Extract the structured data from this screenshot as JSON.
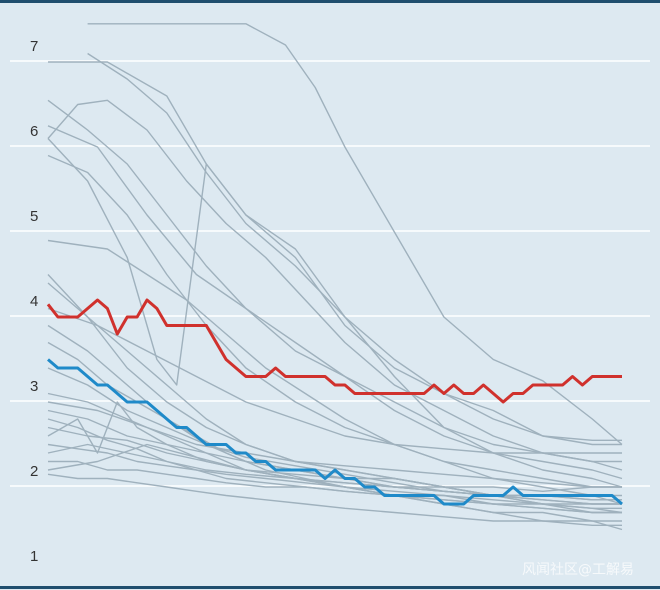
{
  "chart_data": {
    "type": "line",
    "title": "",
    "xlabel": "",
    "ylabel": "",
    "ylim": [
      0.85,
      7.5
    ],
    "xlim": [
      0,
      58
    ],
    "y_ticks": [
      1,
      2,
      3,
      4,
      5,
      6,
      7
    ],
    "y_tick_labels": [
      "1",
      "2",
      "3",
      "4",
      "5",
      "6",
      "7"
    ],
    "grid": true,
    "colors": {
      "background": "#dde9f1",
      "grid": "#ffffff",
      "highlight_red": "#d0312d",
      "highlight_blue": "#1f8ac9",
      "context": "#9fb1bd",
      "rule": "#1f4e6e"
    },
    "highlight_series": [
      {
        "name": "red series",
        "color": "#d0312d",
        "x": [
          0,
          1,
          2,
          3,
          4,
          5,
          6,
          7,
          8,
          9,
          10,
          11,
          12,
          13,
          14,
          15,
          16,
          17,
          18,
          19,
          20,
          21,
          22,
          23,
          24,
          25,
          26,
          27,
          28,
          29,
          30,
          31,
          32,
          33,
          34,
          35,
          36,
          37,
          38,
          39,
          40,
          41,
          42,
          43,
          44,
          45,
          46,
          47,
          48,
          49,
          50,
          51,
          52,
          53,
          54,
          55,
          56,
          57,
          58
        ],
        "values": [
          3.95,
          3.8,
          3.8,
          3.8,
          3.9,
          4.0,
          3.9,
          3.6,
          3.8,
          3.8,
          4.0,
          3.9,
          3.7,
          3.7,
          3.7,
          3.7,
          3.7,
          3.5,
          3.3,
          3.2,
          3.1,
          3.1,
          3.1,
          3.2,
          3.1,
          3.1,
          3.1,
          3.1,
          3.1,
          3.0,
          3.0,
          2.9,
          2.9,
          2.9,
          2.9,
          2.9,
          2.9,
          2.9,
          2.9,
          3.0,
          2.9,
          3.0,
          2.9,
          2.9,
          3.0,
          2.9,
          2.8,
          2.9,
          2.9,
          3.0,
          3.0,
          3.0,
          3.0,
          3.1,
          3.0,
          3.1,
          3.1,
          3.1,
          3.1
        ]
      },
      {
        "name": "blue series",
        "color": "#1f8ac9",
        "x": [
          0,
          1,
          2,
          3,
          4,
          5,
          6,
          7,
          8,
          9,
          10,
          11,
          12,
          13,
          14,
          15,
          16,
          17,
          18,
          19,
          20,
          21,
          22,
          23,
          24,
          25,
          26,
          27,
          28,
          29,
          30,
          31,
          32,
          33,
          34,
          35,
          36,
          37,
          38,
          39,
          40,
          41,
          42,
          43,
          44,
          45,
          46,
          47,
          48,
          49,
          50,
          51,
          52,
          53,
          54,
          55,
          56,
          57,
          58
        ],
        "values": [
          3.3,
          3.2,
          3.2,
          3.2,
          3.1,
          3.0,
          3.0,
          2.9,
          2.8,
          2.8,
          2.8,
          2.7,
          2.6,
          2.5,
          2.5,
          2.4,
          2.3,
          2.3,
          2.3,
          2.2,
          2.2,
          2.1,
          2.1,
          2.0,
          2.0,
          2.0,
          2.0,
          2.0,
          1.9,
          2.0,
          1.9,
          1.9,
          1.8,
          1.8,
          1.7,
          1.7,
          1.7,
          1.7,
          1.7,
          1.7,
          1.6,
          1.6,
          1.6,
          1.7,
          1.7,
          1.7,
          1.7,
          1.8,
          1.7,
          1.7,
          1.7,
          1.7,
          1.7,
          1.7,
          1.7,
          1.7,
          1.7,
          1.7,
          1.6
        ]
      }
    ],
    "context_series": [
      {
        "x": [
          4,
          20,
          24,
          27,
          30,
          35,
          40,
          45,
          50,
          55,
          58
        ],
        "values": [
          7.25,
          7.25,
          7.0,
          6.5,
          5.8,
          4.8,
          3.8,
          3.3,
          3.05,
          2.6,
          2.3
        ]
      },
      {
        "x": [
          0,
          6,
          12,
          16,
          20,
          25,
          30,
          35,
          40,
          45,
          50,
          55,
          58
        ],
        "values": [
          6.8,
          6.8,
          6.4,
          5.6,
          5.0,
          4.5,
          3.7,
          3.2,
          2.9,
          2.6,
          2.4,
          2.35,
          2.35
        ]
      },
      {
        "x": [
          4,
          8,
          12,
          16,
          20,
          25,
          30,
          35,
          40,
          45,
          50,
          55,
          58
        ],
        "values": [
          6.9,
          6.6,
          6.2,
          5.5,
          4.9,
          4.4,
          3.8,
          3.3,
          2.9,
          2.7,
          2.4,
          2.3,
          2.3
        ]
      },
      {
        "x": [
          0,
          3,
          6,
          10,
          14,
          18,
          22,
          26,
          30,
          35,
          40,
          45,
          50,
          55,
          58
        ],
        "values": [
          5.9,
          6.3,
          6.35,
          6.0,
          5.4,
          4.9,
          4.5,
          4.0,
          3.5,
          3.0,
          2.7,
          2.4,
          2.2,
          2.1,
          2.0
        ]
      },
      {
        "x": [
          0,
          5,
          10,
          15,
          20,
          25,
          30,
          35,
          40,
          45,
          50,
          55,
          58
        ],
        "values": [
          6.05,
          5.8,
          5.0,
          4.3,
          3.9,
          3.4,
          3.1,
          2.7,
          2.4,
          2.2,
          2.1,
          2.0,
          1.9
        ]
      },
      {
        "x": [
          0,
          4,
          8,
          12,
          16,
          20,
          25,
          30,
          35,
          40,
          45,
          50,
          55,
          58
        ],
        "values": [
          5.7,
          5.5,
          5.0,
          4.3,
          3.7,
          3.2,
          2.8,
          2.5,
          2.3,
          2.1,
          2.0,
          1.9,
          1.8,
          1.8
        ]
      },
      {
        "x": [
          0,
          6,
          10,
          14,
          18,
          22,
          26,
          30,
          35,
          40,
          45,
          50,
          55,
          58
        ],
        "values": [
          4.7,
          4.6,
          4.3,
          4.0,
          3.6,
          3.2,
          2.9,
          2.6,
          2.3,
          2.1,
          1.9,
          1.8,
          1.7,
          1.6
        ]
      },
      {
        "x": [
          0,
          4,
          8,
          11,
          13,
          16,
          20,
          25,
          30,
          35,
          40,
          45,
          50,
          55,
          58
        ],
        "values": [
          5.9,
          5.4,
          4.5,
          3.3,
          3.0,
          5.6,
          5.0,
          4.6,
          3.8,
          3.1,
          2.5,
          2.2,
          2.0,
          1.9,
          1.8
        ]
      },
      {
        "x": [
          0,
          4,
          8,
          12,
          16,
          20,
          25,
          30,
          35,
          40,
          45,
          50,
          55,
          58
        ],
        "values": [
          4.3,
          3.8,
          3.4,
          3.0,
          2.6,
          2.3,
          2.1,
          2.0,
          1.9,
          1.8,
          1.7,
          1.6,
          1.5,
          1.5
        ]
      },
      {
        "x": [
          0,
          3,
          6,
          9,
          12,
          15,
          18,
          22,
          26,
          30,
          35,
          40,
          45,
          50,
          55,
          58
        ],
        "values": [
          3.5,
          3.3,
          3.0,
          2.8,
          2.6,
          2.4,
          2.2,
          2.0,
          1.9,
          1.8,
          1.7,
          1.6,
          1.5,
          1.5,
          1.4,
          1.4
        ]
      },
      {
        "x": [
          0,
          4,
          8,
          12,
          16,
          20,
          25,
          30,
          35,
          40,
          45,
          50,
          55,
          58
        ],
        "values": [
          2.9,
          2.8,
          2.6,
          2.4,
          2.2,
          2.0,
          1.9,
          1.8,
          1.7,
          1.6,
          1.5,
          1.4,
          1.4,
          1.3
        ]
      },
      {
        "x": [
          0,
          3,
          6,
          9,
          12,
          15,
          18,
          22,
          26,
          30,
          35,
          40,
          45,
          50,
          55,
          58
        ],
        "values": [
          2.6,
          2.5,
          2.35,
          2.25,
          2.1,
          2.0,
          1.9,
          1.85,
          1.8,
          1.75,
          1.7,
          1.65,
          1.6,
          1.6,
          1.55,
          1.55
        ]
      },
      {
        "x": [
          0,
          3,
          6,
          9,
          12,
          15,
          18,
          22,
          26,
          30,
          35,
          40,
          45,
          50,
          55,
          58
        ],
        "values": [
          2.3,
          2.25,
          2.2,
          2.1,
          2.05,
          2.0,
          1.95,
          1.9,
          1.85,
          1.8,
          1.7,
          1.7,
          1.65,
          1.6,
          1.6,
          1.6
        ]
      },
      {
        "x": [
          0,
          3,
          6,
          9,
          12,
          15,
          18,
          22,
          26,
          30,
          35,
          40,
          45,
          50,
          55,
          58
        ],
        "values": [
          2.1,
          2.1,
          2.0,
          2.0,
          1.95,
          1.9,
          1.85,
          1.8,
          1.8,
          1.75,
          1.7,
          1.65,
          1.6,
          1.55,
          1.5,
          1.5
        ]
      },
      {
        "x": [
          0,
          3,
          6,
          9,
          12,
          15,
          18,
          22,
          26,
          30,
          35,
          40,
          45,
          50,
          55,
          58
        ],
        "values": [
          1.95,
          1.9,
          1.9,
          1.85,
          1.8,
          1.75,
          1.7,
          1.65,
          1.6,
          1.55,
          1.5,
          1.45,
          1.4,
          1.4,
          1.35,
          1.35
        ]
      },
      {
        "x": [
          0,
          4,
          8,
          12,
          16,
          20,
          25,
          30,
          35,
          40,
          45,
          50,
          55,
          58
        ],
        "values": [
          2.7,
          2.6,
          2.4,
          2.3,
          2.2,
          2.1,
          2.0,
          1.9,
          1.9,
          1.8,
          1.8,
          1.75,
          1.8,
          1.8
        ]
      },
      {
        "x": [
          0,
          4,
          8,
          12,
          16,
          20,
          25,
          30,
          35,
          40,
          45,
          50,
          55,
          58
        ],
        "values": [
          2.5,
          2.4,
          2.35,
          2.2,
          2.1,
          2.0,
          1.95,
          1.9,
          1.8,
          1.8,
          1.7,
          1.7,
          1.7,
          1.7
        ]
      },
      {
        "x": [
          0,
          3,
          5,
          7,
          9,
          12,
          16,
          20,
          25,
          30,
          35,
          40,
          45,
          50,
          55,
          58
        ],
        "values": [
          2.4,
          2.6,
          2.2,
          2.8,
          2.5,
          2.3,
          2.1,
          2.0,
          1.9,
          1.85,
          1.8,
          1.75,
          1.7,
          1.7,
          1.65,
          1.65
        ]
      },
      {
        "x": [
          0,
          4,
          8,
          12,
          16,
          20,
          25,
          30,
          35,
          40,
          45,
          50,
          55,
          58
        ],
        "values": [
          3.7,
          3.4,
          3.0,
          2.6,
          2.3,
          2.1,
          2.0,
          1.9,
          1.8,
          1.75,
          1.7,
          1.65,
          1.6,
          1.6
        ]
      },
      {
        "x": [
          0,
          4,
          8,
          12,
          16,
          20,
          25,
          30,
          35,
          40,
          45,
          50,
          55,
          58
        ],
        "values": [
          4.2,
          3.8,
          3.2,
          2.8,
          2.5,
          2.3,
          2.1,
          2.0,
          1.9,
          1.8,
          1.7,
          1.7,
          1.65,
          1.65
        ]
      },
      {
        "x": [
          0,
          4,
          8,
          12,
          16,
          20,
          25,
          30,
          35,
          40,
          45,
          50,
          55,
          58
        ],
        "values": [
          3.2,
          3.0,
          2.7,
          2.5,
          2.3,
          2.15,
          2.05,
          1.95,
          1.85,
          1.75,
          1.7,
          1.6,
          1.55,
          1.5
        ]
      },
      {
        "x": [
          0,
          4,
          8,
          12,
          16,
          20,
          25,
          30,
          35,
          40,
          45,
          50,
          55,
          58
        ],
        "values": [
          2.2,
          2.3,
          2.2,
          2.1,
          2.0,
          1.95,
          1.9,
          1.8,
          1.75,
          1.7,
          1.6,
          1.55,
          1.5,
          1.5
        ]
      },
      {
        "x": [
          0,
          4,
          8,
          12,
          16,
          20,
          25,
          30,
          35,
          40,
          45,
          50,
          55,
          58
        ],
        "values": [
          6.35,
          6.0,
          5.6,
          5.0,
          4.4,
          3.9,
          3.5,
          3.1,
          2.8,
          2.5,
          2.3,
          2.2,
          2.1,
          2.1
        ]
      },
      {
        "x": [
          0,
          5,
          10,
          15,
          20,
          25,
          30,
          35,
          40,
          45,
          50,
          55,
          58
        ],
        "values": [
          2.0,
          2.1,
          2.3,
          2.15,
          2.0,
          1.9,
          1.85,
          1.8,
          1.75,
          1.7,
          1.65,
          1.6,
          1.6
        ]
      },
      {
        "x": [
          0,
          5,
          10,
          15,
          20,
          25,
          30,
          35,
          40,
          45,
          50,
          55,
          58
        ],
        "values": [
          2.8,
          2.7,
          2.5,
          2.3,
          2.2,
          2.1,
          2.05,
          2.0,
          1.95,
          1.9,
          1.85,
          1.8,
          1.8
        ]
      },
      {
        "x": [
          0,
          5,
          10,
          15,
          20,
          25,
          30,
          35,
          40,
          45,
          50,
          55,
          58
        ],
        "values": [
          3.9,
          3.7,
          3.4,
          3.1,
          2.8,
          2.6,
          2.4,
          2.3,
          2.25,
          2.2,
          2.2,
          2.2,
          2.2
        ]
      }
    ]
  },
  "watermark": "风闻社区@工解易"
}
